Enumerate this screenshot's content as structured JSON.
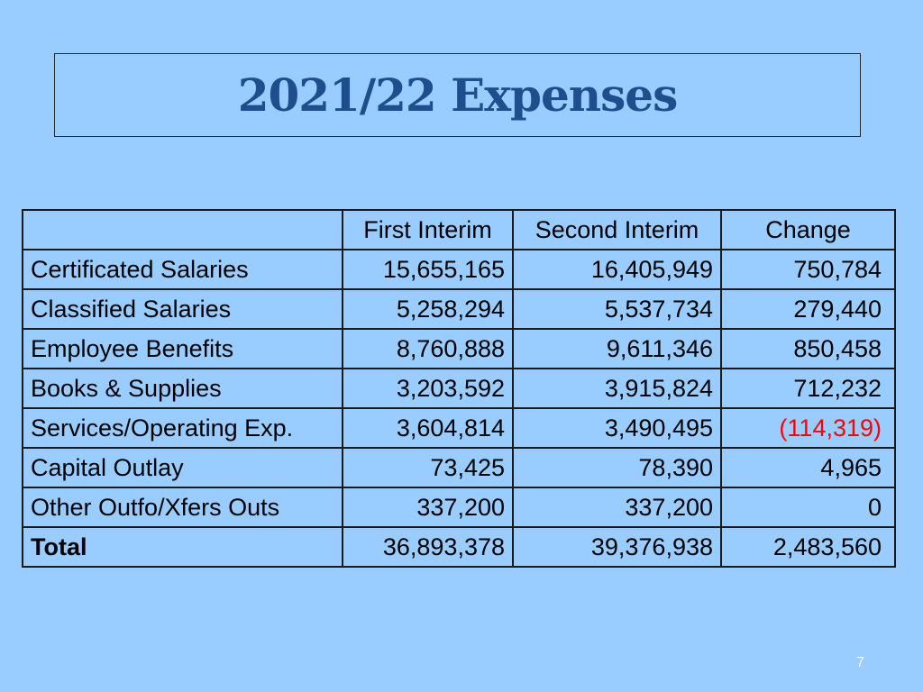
{
  "slide": {
    "title": "2021/22 Expenses",
    "page_number": "7"
  },
  "table": {
    "headers": [
      "",
      "First Interim",
      "Second Interim",
      "Change"
    ],
    "rows": [
      {
        "label": "Certificated Salaries",
        "first_interim": "15,655,165",
        "second_interim": "16,405,949",
        "change": "750,784"
      },
      {
        "label": "Classified Salaries",
        "first_interim": "5,258,294",
        "second_interim": "5,537,734",
        "change": "279,440"
      },
      {
        "label": "Employee Benefits",
        "first_interim": "8,760,888",
        "second_interim": "9,611,346",
        "change": "850,458"
      },
      {
        "label": "Books & Supplies",
        "first_interim": "3,203,592",
        "second_interim": "3,915,824",
        "change": "712,232"
      },
      {
        "label": "Services/Operating Exp.",
        "first_interim": "3,604,814",
        "second_interim": "3,490,495",
        "change": "(114,319)"
      },
      {
        "label": "Capital Outlay",
        "first_interim": "73,425",
        "second_interim": "78,390",
        "change": "4,965"
      },
      {
        "label": "Other Outfo/Xfers Outs",
        "first_interim": "337,200",
        "second_interim": "337,200",
        "change": "0"
      }
    ],
    "total": {
      "label": "Total",
      "first_interim": "36,893,378",
      "second_interim": "39,376,938",
      "change": "2,483,560"
    }
  },
  "colors": {
    "background": "#99ccff",
    "title": "#1f4e8c",
    "negative_value": "#ff0000"
  }
}
